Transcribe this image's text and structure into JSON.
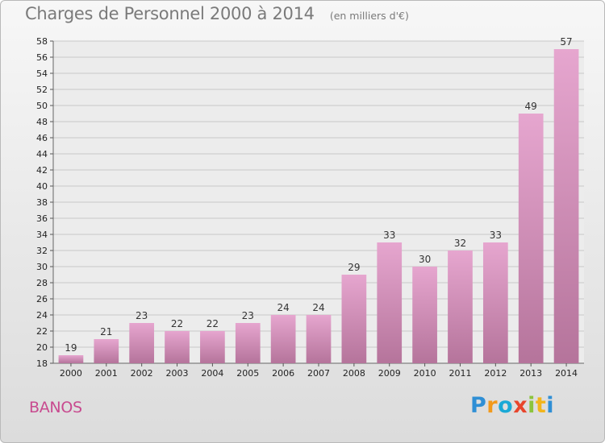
{
  "header": {
    "title": "Charges de Personnel 2000 à 2014",
    "unit": "(en milliers d'€)"
  },
  "commune": "BANOS",
  "logo": {
    "text": "Proxiti",
    "letters": [
      {
        "ch": "P",
        "color": "#2f8fd5"
      },
      {
        "ch": "r",
        "color": "#f29a1c"
      },
      {
        "ch": "o",
        "color": "#1aa9d6"
      },
      {
        "ch": "x",
        "color": "#e8452c"
      },
      {
        "ch": "i",
        "color": "#8cc43c"
      },
      {
        "ch": "t",
        "color": "#f2b51c"
      },
      {
        "ch": "i",
        "color": "#2f8fd5"
      }
    ]
  },
  "colors": {
    "bar_top": "#e6a6cf",
    "bar_bottom": "#b5749b",
    "grid": "#c9c9c9",
    "plot_bg": "#ececec"
  },
  "chart_data": {
    "type": "bar",
    "title": "Charges de Personnel 2000 à 2014",
    "subtitle": "(en milliers d'€)",
    "xlabel": "",
    "ylabel": "",
    "categories": [
      "2000",
      "2001",
      "2002",
      "2003",
      "2004",
      "2005",
      "2006",
      "2007",
      "2008",
      "2009",
      "2010",
      "2011",
      "2012",
      "2013",
      "2014"
    ],
    "values": [
      19,
      21,
      23,
      22,
      22,
      23,
      24,
      24,
      29,
      33,
      30,
      32,
      33,
      49,
      57
    ],
    "ylim": [
      18,
      58
    ],
    "yticks": [
      18,
      20,
      22,
      24,
      26,
      28,
      30,
      32,
      34,
      36,
      38,
      40,
      42,
      44,
      46,
      48,
      50,
      52,
      54,
      56,
      58
    ],
    "grid": true,
    "legend": "none"
  }
}
